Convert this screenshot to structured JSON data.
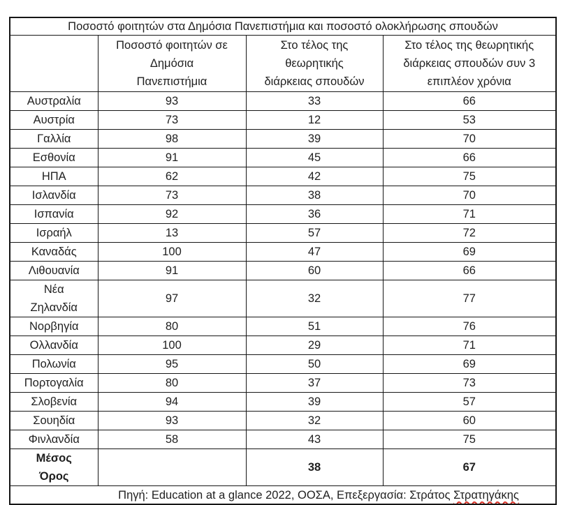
{
  "page": {
    "background_color": "#ffffff",
    "text_color": "#1f1f1f",
    "border_color": "#161616",
    "spellcheck_underline_color": "#d93025"
  },
  "table": {
    "title": "Ποσοστό φοιτητών στα Δημόσια Πανεπιστήμια και ποσοστό ολοκλήρωσης σπουδών",
    "columns": {
      "country": "",
      "public": "Ποσοστό φοιτητών σε\nΔημόσια\nΠανεπιστήμια",
      "theoretical": "Στο τέλος της\nθεωρητικής\nδιάρκειας σπουδών",
      "plus3": "Στο τέλος της θεωρητικής\nδιάρκειας σπουδών συν 3\nεπιπλέον χρόνια"
    },
    "rows": [
      {
        "country": "Αυστραλία",
        "public": "93",
        "theoretical": "33",
        "plus3": "66",
        "bold": false
      },
      {
        "country": "Αυστρία",
        "public": "73",
        "theoretical": "12",
        "plus3": "53",
        "bold": false
      },
      {
        "country": "Γαλλία",
        "public": "98",
        "theoretical": "39",
        "plus3": "70",
        "bold": false
      },
      {
        "country": "Εσθονία",
        "public": "91",
        "theoretical": "45",
        "plus3": "66",
        "bold": false
      },
      {
        "country": "ΗΠΑ",
        "public": "62",
        "theoretical": "42",
        "plus3": "75",
        "bold": false
      },
      {
        "country": "Ισλανδία",
        "public": "73",
        "theoretical": "38",
        "plus3": "70",
        "bold": false
      },
      {
        "country": "Ισπανία",
        "public": "92",
        "theoretical": "36",
        "plus3": "71",
        "bold": false
      },
      {
        "country": "Ισραήλ",
        "public": "13",
        "theoretical": "57",
        "plus3": "72",
        "bold": false
      },
      {
        "country": "Καναδάς",
        "public": "100",
        "theoretical": "47",
        "plus3": "69",
        "bold": false
      },
      {
        "country": "Λιθουανία",
        "public": "91",
        "theoretical": "60",
        "plus3": "66",
        "bold": false
      },
      {
        "country": "Νέα\nΖηλανδία",
        "public": "97",
        "theoretical": "32",
        "plus3": "77",
        "bold": false
      },
      {
        "country": "Νορβηγία",
        "public": "80",
        "theoretical": "51",
        "plus3": "76",
        "bold": false
      },
      {
        "country": "Ολλανδία",
        "public": "100",
        "theoretical": "29",
        "plus3": "71",
        "bold": false
      },
      {
        "country": "Πολωνία",
        "public": "95",
        "theoretical": "50",
        "plus3": "69",
        "bold": false
      },
      {
        "country": "Πορτογαλία",
        "public": "80",
        "theoretical": "37",
        "plus3": "73",
        "bold": false
      },
      {
        "country": "Σλοβενία",
        "public": "94",
        "theoretical": "39",
        "plus3": "57",
        "bold": false
      },
      {
        "country": "Σουηδία",
        "public": "93",
        "theoretical": "32",
        "plus3": "60",
        "bold": false
      },
      {
        "country": "Φινλανδία",
        "public": "58",
        "theoretical": "43",
        "plus3": "75",
        "bold": false
      },
      {
        "country": "Μέσος\nΌρος",
        "public": "",
        "theoretical": "38",
        "plus3": "67",
        "bold": true
      }
    ],
    "footer": {
      "source_text": "Πηγή: Education at a glance 2022, ΟΟΣΑ, Επεξεργασία: Στράτος ",
      "misspelled_word": "Στρατηγάκης"
    }
  }
}
